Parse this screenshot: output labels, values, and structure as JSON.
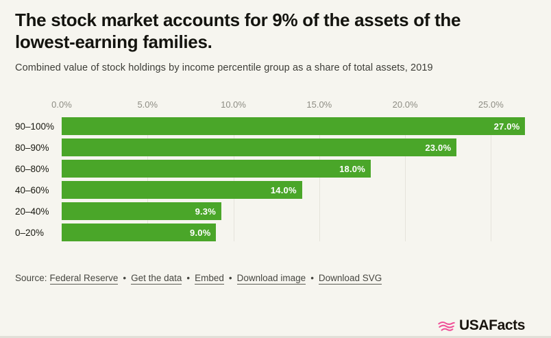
{
  "chart_data": {
    "type": "bar",
    "orientation": "horizontal",
    "title": "The stock market accounts for 9% of the assets of the lowest-earning families.",
    "subtitle": "Combined value of stock holdings by income percentile group as a share of total assets, 2019",
    "categories": [
      "90–100%",
      "80–90%",
      "60–80%",
      "40–60%",
      "20–40%",
      "0–20%"
    ],
    "values": [
      27.0,
      23.0,
      18.0,
      14.0,
      9.3,
      9.0
    ],
    "value_labels": [
      "27.0%",
      "23.0%",
      "18.0%",
      "14.0%",
      "9.3%",
      "9.0%"
    ],
    "x_ticks": [
      {
        "value": 0,
        "label": "0.0%"
      },
      {
        "value": 5,
        "label": "5.0%"
      },
      {
        "value": 10,
        "label": "10.0%"
      },
      {
        "value": 15,
        "label": "15.0%"
      },
      {
        "value": 20,
        "label": "20.0%"
      },
      {
        "value": 25,
        "label": "25.0%"
      }
    ],
    "xlim": [
      0,
      27.5
    ],
    "grid": "vertical-light",
    "legend": "none",
    "bar_color": "#4aa629",
    "value_label_color": "#ffffff",
    "background_color": "#f6f5ef"
  },
  "footer": {
    "source_label": "Source:",
    "separator": "•",
    "links": [
      "Federal Reserve",
      "Get the data",
      "Embed",
      "Download image",
      "Download SVG"
    ]
  },
  "branding": {
    "logo_text": "USAFacts",
    "logo_color": "#ef5098"
  }
}
